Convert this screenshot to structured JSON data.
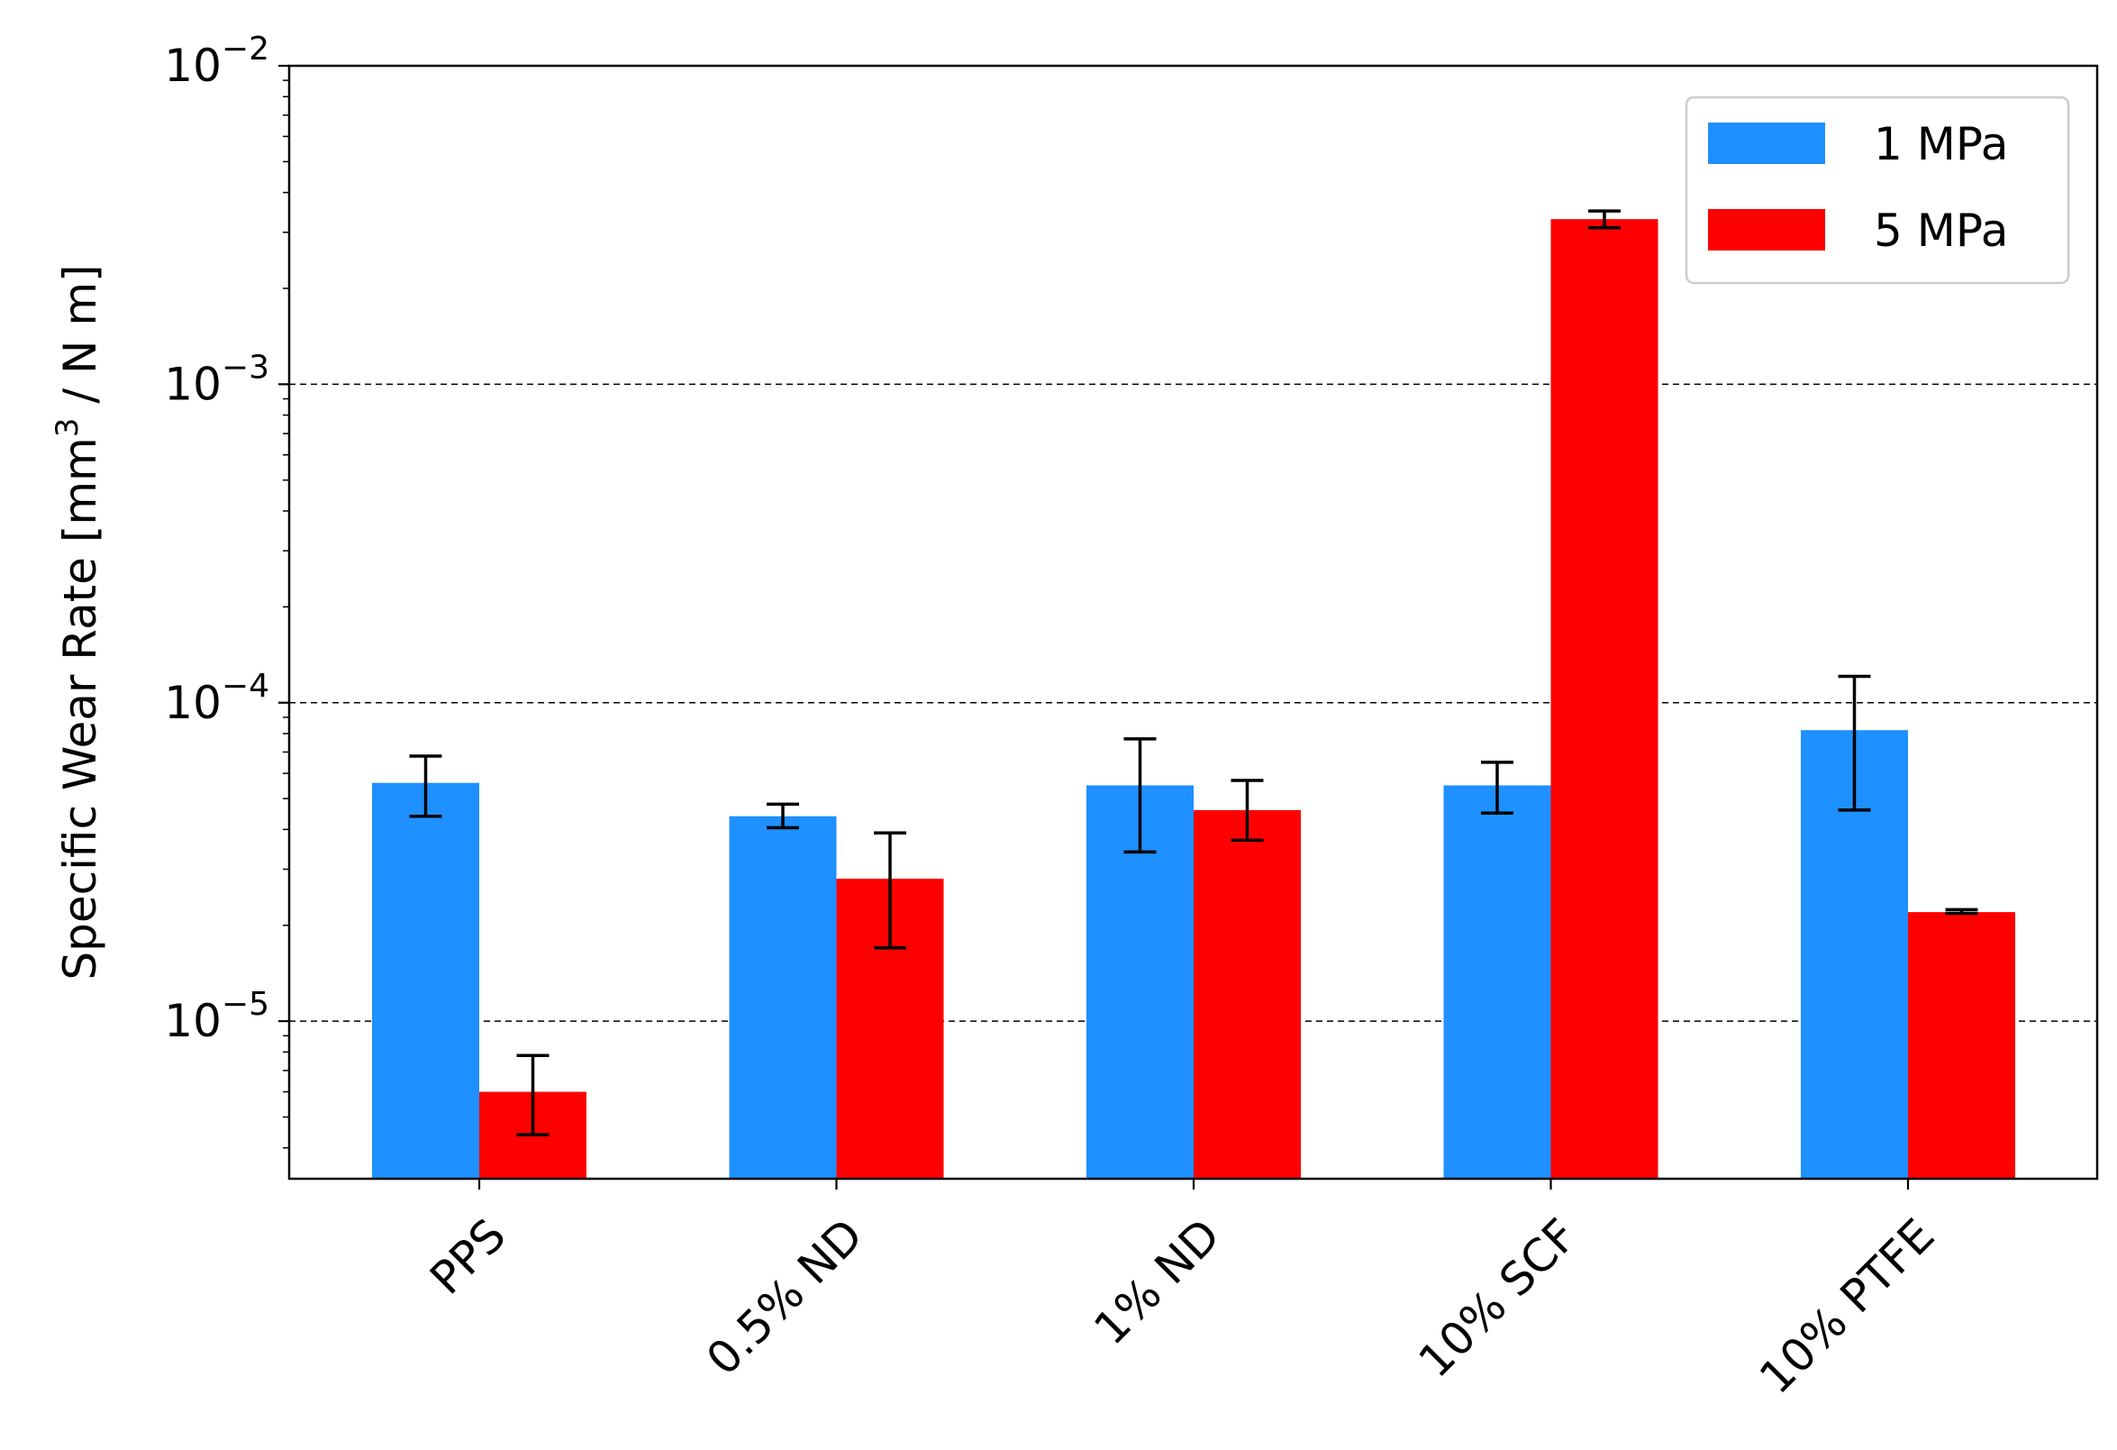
{
  "chart_data": {
    "type": "bar",
    "y_scale": "log",
    "ylim": [
      3.2e-06,
      0.01
    ],
    "grid": "horizontal dashed at major ticks",
    "legend_position": "top-right",
    "ylabel": "Specific Wear Rate [mm³ / N m]",
    "ylabel_parts": {
      "pre": "Specific Wear Rate [mm",
      "sup": "3",
      "post": " / N m]"
    },
    "categories": [
      "PPS",
      "0.5% ND",
      "1% ND",
      "10% SCF",
      "10% PTFE"
    ],
    "series": [
      {
        "name": "1 MPa",
        "color": "#1e90ff",
        "values": [
          5.6e-05,
          4.4e-05,
          5.5e-05,
          5.5e-05,
          8.2e-05
        ],
        "err_low": [
          4.4e-05,
          4.05e-05,
          3.4e-05,
          4.5e-05,
          4.6e-05
        ],
        "err_high": [
          6.8e-05,
          4.8e-05,
          7.7e-05,
          6.5e-05,
          0.000121
        ]
      },
      {
        "name": "5 MPa",
        "color": "#ff0000",
        "values": [
          6e-06,
          2.8e-05,
          4.6e-05,
          0.0033,
          2.2e-05
        ],
        "err_low": [
          4.4e-06,
          1.7e-05,
          3.7e-05,
          0.0031,
          2.18e-05
        ],
        "err_high": [
          7.8e-06,
          3.9e-05,
          5.7e-05,
          0.0035,
          2.24e-05
        ]
      }
    ],
    "y_ticks": [
      {
        "value": 1e-05,
        "base": "10",
        "exp": "−5"
      },
      {
        "value": 0.0001,
        "base": "10",
        "exp": "−4"
      },
      {
        "value": 0.001,
        "base": "10",
        "exp": "−3"
      },
      {
        "value": 0.01,
        "base": "10",
        "exp": "−2"
      }
    ]
  }
}
